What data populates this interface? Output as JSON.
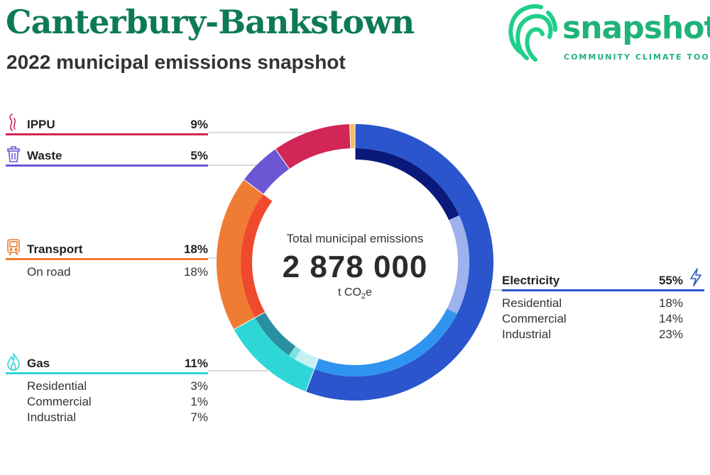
{
  "header": {
    "title": "Canterbury-Bankstown",
    "subtitle": "2022 municipal emissions snapshot"
  },
  "logo": {
    "word": "snapshot",
    "tagline": "COMMUNITY CLIMATE TOOL",
    "color": "#1fb37a"
  },
  "center": {
    "label": "Total municipal emissions",
    "value": "2 878 000",
    "unit_prefix": "t CO",
    "unit_sub": "2",
    "unit_suffix": "e"
  },
  "chart_data": {
    "type": "pie",
    "title": "2022 municipal emissions snapshot",
    "total": 2878000,
    "unit": "t CO2e",
    "series": [
      {
        "name": "Electricity",
        "pct": 55,
        "color": "#2a55cc",
        "icon": "lightning-icon",
        "sub": [
          {
            "name": "Residential",
            "pct": 18,
            "color": "#0a1a7a"
          },
          {
            "name": "Commercial",
            "pct": 14,
            "color": "#9db2ee"
          },
          {
            "name": "Industrial",
            "pct": 23,
            "color": "#2f94f0"
          }
        ]
      },
      {
        "name": "Gas",
        "pct": 11,
        "color": "#2fd6d8",
        "icon": "flame-icon",
        "sub": [
          {
            "name": "Residential",
            "pct": 3,
            "color": "#c6f1f2"
          },
          {
            "name": "Commercial",
            "pct": 1,
            "color": "#7fe0e2"
          },
          {
            "name": "Industrial",
            "pct": 7,
            "color": "#2a8fa0"
          }
        ]
      },
      {
        "name": "Transport",
        "pct": 18,
        "color": "#f07b33",
        "icon": "train-icon",
        "sub": [
          {
            "name": "On road",
            "pct": 18,
            "color": "#ef4a2e"
          }
        ]
      },
      {
        "name": "Waste",
        "pct": 5,
        "color": "#6c56d4",
        "icon": "trash-icon",
        "sub": []
      },
      {
        "name": "IPPU",
        "pct": 9,
        "color": "#d22656",
        "icon": "smoke-icon",
        "sub": []
      },
      {
        "name": "",
        "pct": 0.6,
        "color": "#f2c15c",
        "icon": "",
        "sub": []
      }
    ]
  },
  "legend": {
    "ippu": {
      "label": "IPPU",
      "pct": "9%"
    },
    "waste": {
      "label": "Waste",
      "pct": "5%"
    },
    "transport": {
      "label": "Transport",
      "pct": "18%",
      "rows": [
        {
          "label": "On road",
          "pct": "18%"
        }
      ]
    },
    "gas": {
      "label": "Gas",
      "pct": "11%",
      "rows": [
        {
          "label": "Residential",
          "pct": "3%"
        },
        {
          "label": "Commercial",
          "pct": "1%"
        },
        {
          "label": "Industrial",
          "pct": "7%"
        }
      ]
    },
    "electricity": {
      "label": "Electricity",
      "pct": "55%",
      "rows": [
        {
          "label": "Residential",
          "pct": "18%"
        },
        {
          "label": "Commercial",
          "pct": "14%"
        },
        {
          "label": "Industrial",
          "pct": "23%"
        }
      ]
    }
  }
}
